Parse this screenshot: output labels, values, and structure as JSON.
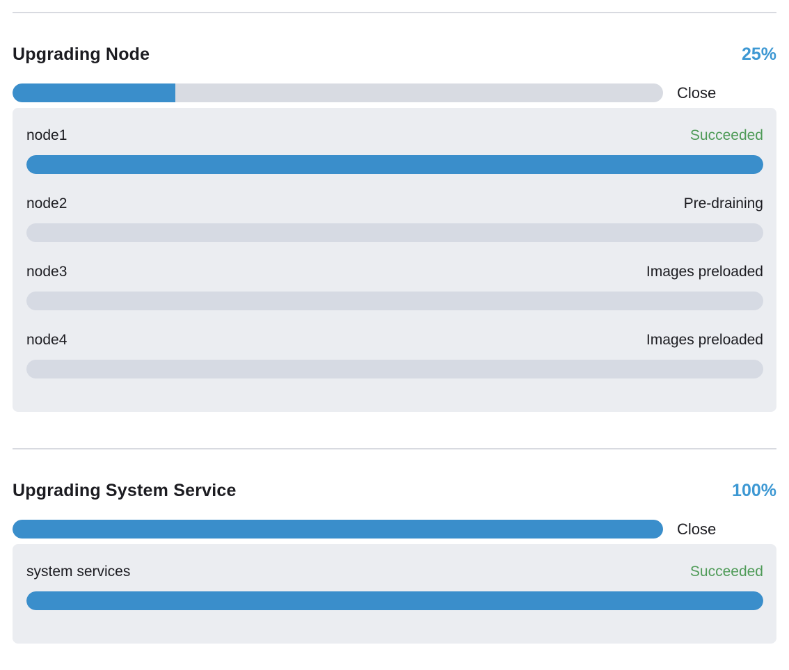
{
  "colors": {
    "accent_blue": "#3a8ecb",
    "percent_blue": "#3d98d3",
    "success_green": "#4f9b58",
    "track_gray": "#d8dbe2",
    "panel_bg": "#ebedf1",
    "text_dark": "#1c1c21",
    "divider": "#d8dae0"
  },
  "sections": [
    {
      "title": "Upgrading Node",
      "percent_label": "25%",
      "percent_value": 25,
      "close_label": "Close",
      "items": [
        {
          "name": "node1",
          "status": "Succeeded",
          "status_type": "success",
          "progress": 100
        },
        {
          "name": "node2",
          "status": "Pre-draining",
          "status_type": "normal",
          "progress": 0
        },
        {
          "name": "node3",
          "status": "Images preloaded",
          "status_type": "normal",
          "progress": 0
        },
        {
          "name": "node4",
          "status": "Images preloaded",
          "status_type": "normal",
          "progress": 0
        }
      ]
    },
    {
      "title": "Upgrading System Service",
      "percent_label": "100%",
      "percent_value": 100,
      "close_label": "Close",
      "items": [
        {
          "name": "system services",
          "status": "Succeeded",
          "status_type": "success",
          "progress": 100
        }
      ]
    }
  ]
}
